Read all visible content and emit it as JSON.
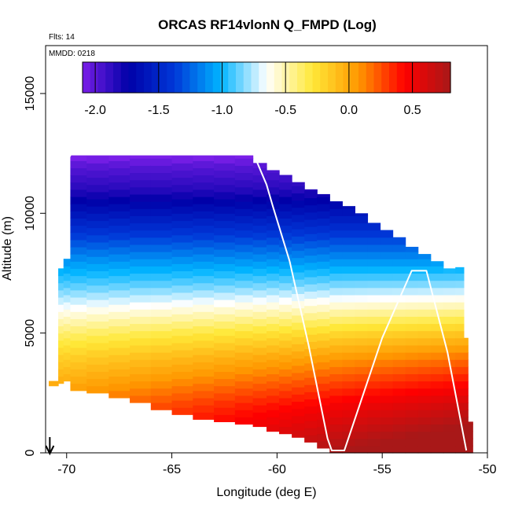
{
  "chart_data": {
    "type": "heatmap",
    "title": "ORCAS RF14vlonN Q_FMPD (Log)",
    "subtitle_flts": "Flts: 14",
    "subtitle_mmdd": "MMDD: 0218",
    "xlabel": "Longitude (deg E)",
    "ylabel": "Altitude (m)",
    "xlim": [
      -71,
      -50
    ],
    "ylim": [
      0,
      17000
    ],
    "x_ticks": [
      -70,
      -65,
      -60,
      -55,
      -50
    ],
    "x_tick_labels": [
      "-70",
      "-65",
      "-60",
      "-55",
      "-50"
    ],
    "y_ticks": [
      0,
      5000,
      10000,
      15000
    ],
    "y_tick_labels": [
      "0",
      "5000",
      "10000",
      "15000"
    ],
    "colorbar": {
      "range": [
        -2.1,
        0.8
      ],
      "ticks": [
        -2.0,
        -1.5,
        -1.0,
        -0.5,
        0.0,
        0.5
      ],
      "tick_labels": [
        "-2.0",
        "-1.5",
        "-1.0",
        "-0.5",
        "0.0",
        "0.5"
      ],
      "colors": [
        "#7b1fe8",
        "#0000a8",
        "#0038d8",
        "#00b4ff",
        "#ffffff",
        "#ffe838",
        "#ff9800",
        "#ff0000",
        "#a81818"
      ]
    },
    "column_bins": [
      {
        "lon": -70.55,
        "bottom": 2800,
        "top": 3000
      },
      {
        "lon": -70.25,
        "bottom": 2900,
        "top": 7700
      },
      {
        "lon": -70.05,
        "bottom": 3000,
        "top": 8100
      },
      {
        "lon": -69.6,
        "bottom": 2600,
        "top": 12450
      },
      {
        "lon": -68.5,
        "bottom": 2500,
        "top": 12450
      },
      {
        "lon": -67.5,
        "bottom": 2300,
        "top": 12450
      },
      {
        "lon": -66.5,
        "bottom": 2100,
        "top": 12450
      },
      {
        "lon": -65.5,
        "bottom": 1800,
        "top": 12450
      },
      {
        "lon": -64.5,
        "bottom": 1600,
        "top": 12450
      },
      {
        "lon": -63.5,
        "bottom": 1400,
        "top": 12450
      },
      {
        "lon": -62.5,
        "bottom": 1300,
        "top": 12450
      },
      {
        "lon": -61.5,
        "bottom": 1200,
        "top": 12450
      },
      {
        "lon": -60.8,
        "bottom": 1100,
        "top": 12100
      },
      {
        "lon": -60.2,
        "bottom": 900,
        "top": 11800
      },
      {
        "lon": -59.6,
        "bottom": 800,
        "top": 11600
      },
      {
        "lon": -59.0,
        "bottom": 650,
        "top": 11300
      },
      {
        "lon": -58.4,
        "bottom": 450,
        "top": 11000
      },
      {
        "lon": -57.8,
        "bottom": 200,
        "top": 10800
      },
      {
        "lon": -57.2,
        "bottom": 0,
        "top": 10500
      },
      {
        "lon": -56.6,
        "bottom": 0,
        "top": 10300
      },
      {
        "lon": -56.0,
        "bottom": 0,
        "top": 10000
      },
      {
        "lon": -55.4,
        "bottom": 0,
        "top": 9600
      },
      {
        "lon": -54.8,
        "bottom": 0,
        "top": 9300
      },
      {
        "lon": -54.2,
        "bottom": 0,
        "top": 9000
      },
      {
        "lon": -53.6,
        "bottom": 0,
        "top": 8600
      },
      {
        "lon": -53.0,
        "bottom": 0,
        "top": 8300
      },
      {
        "lon": -52.4,
        "bottom": 0,
        "top": 8000
      },
      {
        "lon": -51.8,
        "bottom": 0,
        "top": 7700
      },
      {
        "lon": -51.25,
        "bottom": 0,
        "top": 7750
      },
      {
        "lon": -51.0,
        "bottom": 0,
        "top": 4800
      },
      {
        "lon": -50.85,
        "bottom": 0,
        "top": 1300
      }
    ],
    "profile_vertical_levels": [
      {
        "alt": 0,
        "value": 0.7
      },
      {
        "alt": 1000,
        "value": 0.55
      },
      {
        "alt": 2000,
        "value": 0.4
      },
      {
        "alt": 3000,
        "value": 0.2
      },
      {
        "alt": 4000,
        "value": 0.0
      },
      {
        "alt": 5000,
        "value": -0.25
      },
      {
        "alt": 6000,
        "value": -0.55
      },
      {
        "alt": 7000,
        "value": -0.85
      },
      {
        "alt": 8000,
        "value": -1.1
      },
      {
        "alt": 9000,
        "value": -1.35
      },
      {
        "alt": 10000,
        "value": -1.6
      },
      {
        "alt": 11000,
        "value": -1.85
      },
      {
        "alt": 12000,
        "value": -2.0
      },
      {
        "alt": 12500,
        "value": -2.15
      }
    ],
    "flight_track": [
      {
        "lon": -70.3,
        "alt": 7800
      },
      {
        "lon": -69.9,
        "alt": 12300
      },
      {
        "lon": -69.8,
        "alt": 12450
      },
      {
        "lon": -61.1,
        "alt": 12450
      },
      {
        "lon": -60.5,
        "alt": 11200
      },
      {
        "lon": -60.2,
        "alt": 10300
      },
      {
        "lon": -59.4,
        "alt": 8000
      },
      {
        "lon": -58.5,
        "alt": 4500
      },
      {
        "lon": -57.6,
        "alt": 600
      },
      {
        "lon": -57.4,
        "alt": 100
      },
      {
        "lon": -56.8,
        "alt": 100
      },
      {
        "lon": -55.0,
        "alt": 4800
      },
      {
        "lon": -53.6,
        "alt": 7600
      },
      {
        "lon": -52.9,
        "alt": 7600
      },
      {
        "lon": -51.9,
        "alt": 4200
      },
      {
        "lon": -51.0,
        "alt": 100
      }
    ],
    "arrow_annotation": {
      "lon": -70.8
    }
  }
}
